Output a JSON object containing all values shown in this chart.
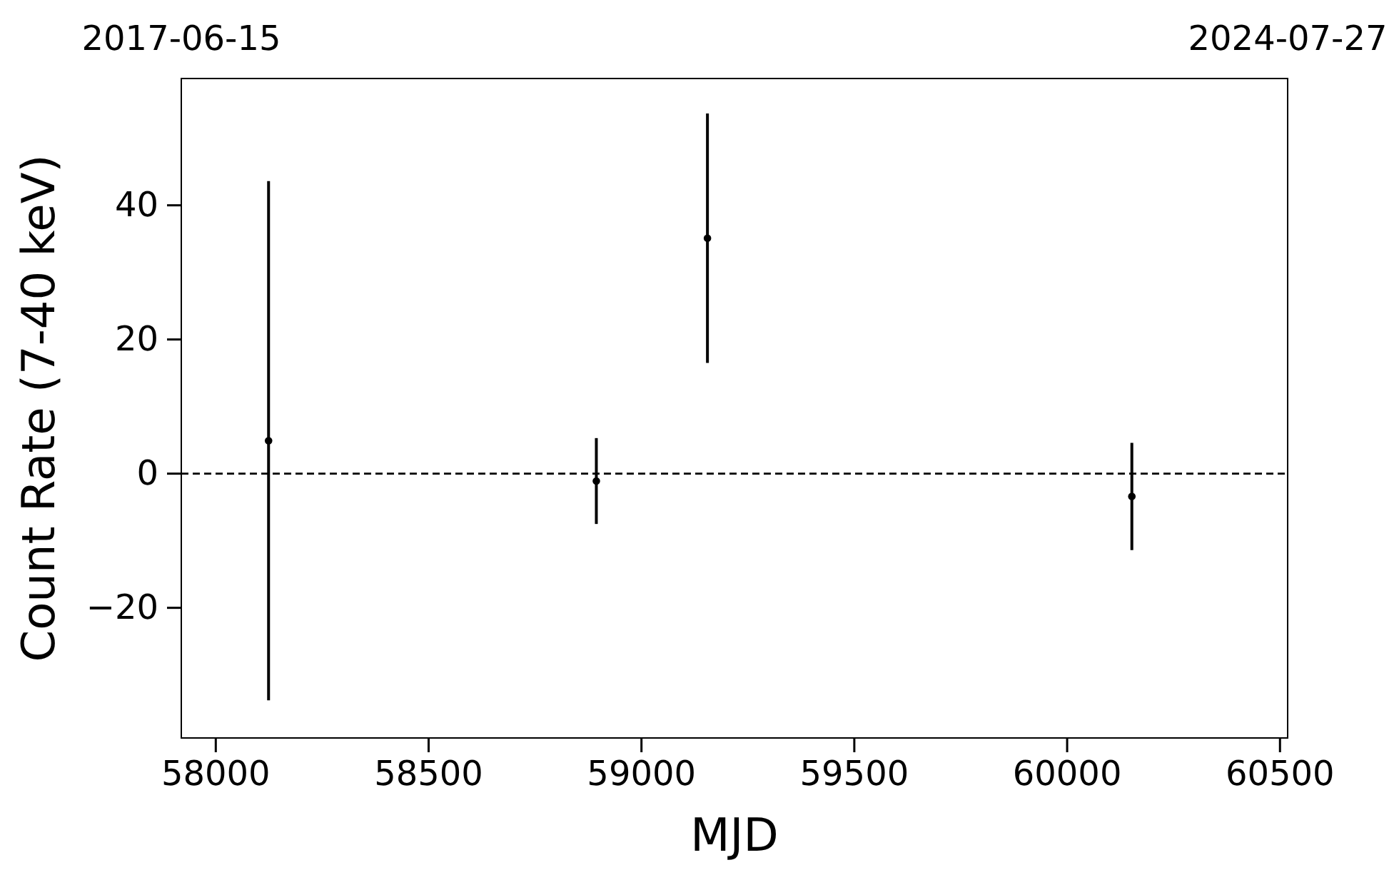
{
  "chart_data": {
    "type": "scatter",
    "xlabel": "MJD",
    "ylabel": "Count Rate (7-40 keV)",
    "x": [
      58124,
      58894,
      59155,
      60152
    ],
    "values": [
      4.9,
      -1.1,
      35.1,
      -3.4
    ],
    "errors": [
      38.7,
      6.4,
      18.6,
      8
    ],
    "color": "#000000",
    "marker": "circle",
    "xlim": [
      57919,
      60518
    ],
    "xticks": [
      58000,
      58500,
      59000,
      59500,
      60000,
      60500
    ],
    "x2lim": [
      "2017-06-15",
      "2024-07-27"
    ],
    "x2ticks": [
      "2017-06-15",
      "2024-07-27"
    ],
    "ylim": [
      -39.4,
      58.9
    ],
    "yticks": [
      {
        "value": -20,
        "label": "−20"
      },
      0,
      20,
      40
    ],
    "ref_lines": [
      {
        "axis": "y",
        "value": 0,
        "color": "#000000",
        "line_style": "dashed"
      }
    ],
    "grid": false
  }
}
